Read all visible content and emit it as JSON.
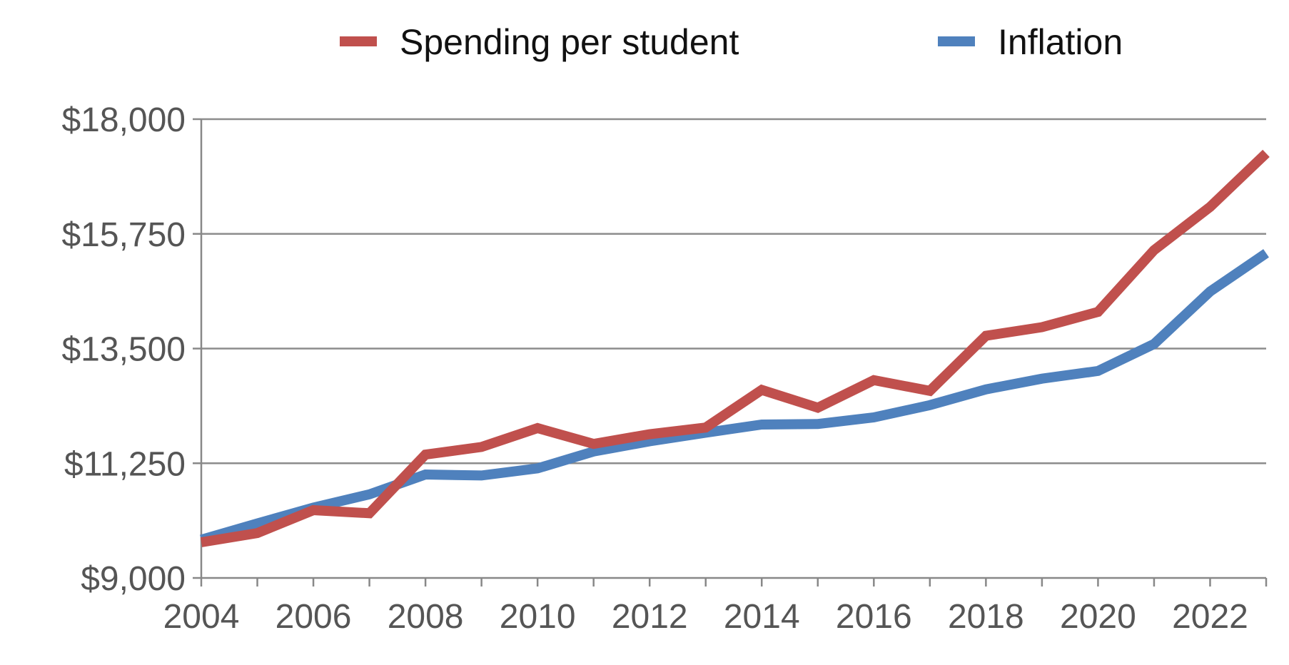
{
  "chart_data": {
    "type": "line",
    "title": "",
    "xlabel": "",
    "ylabel": "",
    "x": [
      2004,
      2005,
      2006,
      2007,
      2008,
      2009,
      2010,
      2011,
      2012,
      2013,
      2014,
      2015,
      2016,
      2017,
      2018,
      2019,
      2020,
      2021,
      2022,
      2023
    ],
    "xlim": [
      2004,
      2023
    ],
    "ylim": [
      9000,
      18000
    ],
    "y_ticks": [
      9000,
      11250,
      13500,
      15750,
      18000
    ],
    "y_tick_labels": [
      "$9,000",
      "$11,250",
      "$13,500",
      "$15,750",
      "$18,000"
    ],
    "x_ticks": [
      2004,
      2006,
      2008,
      2010,
      2012,
      2014,
      2016,
      2018,
      2020,
      2022
    ],
    "x_tick_labels": [
      "2004",
      "2006",
      "2008",
      "2010",
      "2012",
      "2014",
      "2016",
      "2018",
      "2020",
      "2022"
    ],
    "grid": true,
    "legend_position": "top",
    "series": [
      {
        "name": "Spending per student",
        "color": "#C0504D",
        "values": [
          9700,
          9880,
          10330,
          10270,
          11420,
          11570,
          11940,
          11630,
          11820,
          11950,
          12690,
          12340,
          12880,
          12670,
          13750,
          13920,
          14220,
          15430,
          16280,
          17330
        ]
      },
      {
        "name": "Inflation",
        "color": "#4F81BD",
        "values": [
          9750,
          10070,
          10380,
          10640,
          11030,
          11010,
          11150,
          11480,
          11680,
          11850,
          12010,
          12020,
          12150,
          12390,
          12700,
          12910,
          13060,
          13590,
          14620,
          15370
        ]
      }
    ],
    "legend": [
      {
        "label": "Spending per student",
        "color": "#C0504D"
      },
      {
        "label": "Inflation",
        "color": "#4F81BD"
      }
    ],
    "axis_color": "#888888",
    "grid_color": "#8C8C8C",
    "tick_color": "#555555",
    "legend_text_color": "#111111"
  }
}
